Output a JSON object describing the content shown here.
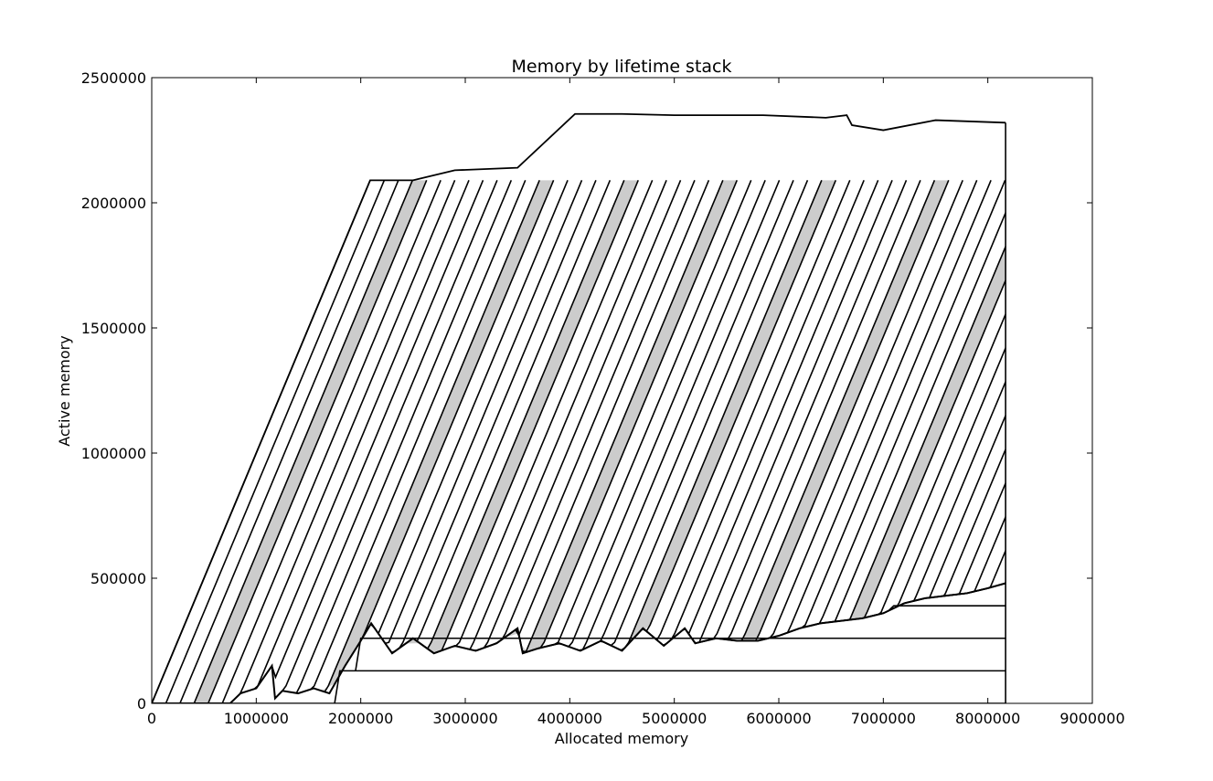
{
  "chart_data": {
    "type": "area",
    "title": "Memory by lifetime stack",
    "xlabel": "Allocated memory",
    "ylabel": "Active memory",
    "xlim": [
      0,
      9000000
    ],
    "ylim": [
      0,
      2500000
    ],
    "xticks": [
      0,
      1000000,
      2000000,
      3000000,
      4000000,
      5000000,
      6000000,
      7000000,
      8000000,
      9000000
    ],
    "yticks": [
      0,
      500000,
      1000000,
      1500000,
      2000000,
      2500000
    ],
    "xtick_labels": [
      "0",
      "1000000",
      "2000000",
      "3000000",
      "4000000",
      "5000000",
      "6000000",
      "7000000",
      "8000000",
      "9000000"
    ],
    "ytick_labels": [
      "0",
      "500000",
      "1000000",
      "1500000",
      "2000000",
      "2500000"
    ],
    "grid": false,
    "x_end": 8170000,
    "baseline_layers": [
      {
        "x": [
          0,
          8170000
        ],
        "y": [
          0,
          0
        ]
      },
      {
        "x": [
          1750000,
          1800000,
          8170000
        ],
        "y": [
          0,
          130000,
          130000
        ]
      },
      {
        "x": [
          1950000,
          2000000,
          8170000
        ],
        "y": [
          130000,
          260000,
          260000
        ]
      },
      {
        "x": [
          7050000,
          7100000,
          8170000
        ],
        "y": [
          370000,
          390000,
          390000
        ]
      }
    ],
    "upper_envelope": {
      "x": [
        0,
        2090000,
        2500000,
        2900000,
        3500000,
        4050000,
        4500000,
        5000000,
        5850000,
        6450000,
        6650000,
        6700000,
        7000000,
        7500000,
        8170000
      ],
      "y": [
        0,
        2090000,
        2090000,
        2130000,
        2140000,
        2355000,
        2355000,
        2350000,
        2350000,
        2340000,
        2350000,
        2310000,
        2290000,
        2330000,
        2320000
      ]
    },
    "noisy_baseline": {
      "x": [
        0,
        750000,
        850000,
        1000000,
        1150000,
        1180000,
        1250000,
        1400000,
        1550000,
        1700000,
        1850000,
        2000000,
        2100000,
        2300000,
        2500000,
        2700000,
        2900000,
        3100000,
        3300000,
        3500000,
        3550000,
        3700000,
        3900000,
        4100000,
        4300000,
        4500000,
        4700000,
        4900000,
        5100000,
        5200000,
        5400000,
        5600000,
        5800000,
        6000000,
        6200000,
        6400000,
        6600000,
        6800000,
        7000000,
        7200000,
        7400000,
        7600000,
        7800000,
        8000000,
        8170000
      ],
      "y": [
        0,
        0,
        40000,
        60000,
        150000,
        20000,
        50000,
        40000,
        60000,
        40000,
        150000,
        250000,
        320000,
        200000,
        260000,
        200000,
        230000,
        210000,
        240000,
        300000,
        200000,
        220000,
        240000,
        210000,
        250000,
        210000,
        300000,
        230000,
        300000,
        240000,
        260000,
        250000,
        250000,
        270000,
        300000,
        320000,
        330000,
        340000,
        360000,
        400000,
        420000,
        430000,
        440000,
        460000,
        480000
      ]
    },
    "band_shift_x": 960000,
    "band_spacing_x": 135000,
    "band_peak": 2090000,
    "shaded_band_indices": [
      3,
      12,
      18,
      25,
      32,
      40,
      47
    ]
  }
}
